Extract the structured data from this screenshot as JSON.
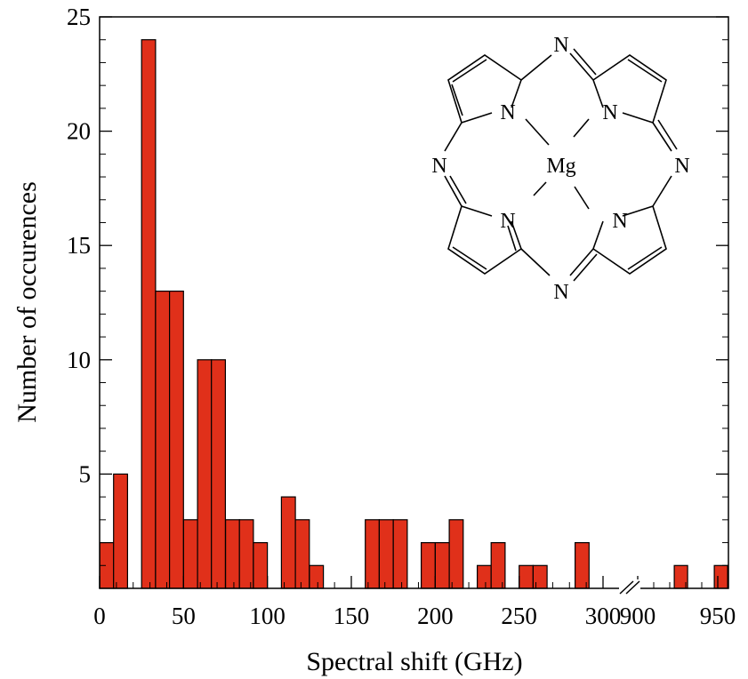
{
  "chart_data": {
    "type": "bar",
    "title": "",
    "xlabel": "Spectral shift  (GHz)",
    "ylabel": "Number of occurences",
    "ylim": [
      0,
      25
    ],
    "yticks": [
      "0",
      "5",
      "10",
      "15",
      "20",
      "25"
    ],
    "xticks": [
      "0",
      "50",
      "100",
      "150",
      "200",
      "250",
      "300",
      "900",
      "950"
    ],
    "axis_break": "between 300 and 900",
    "bar_color": "#e0301a",
    "bin_width": 8.33,
    "bars": [
      {
        "x": 4.2,
        "value": 2
      },
      {
        "x": 12.5,
        "value": 5
      },
      {
        "x": 20.8,
        "value": 0
      },
      {
        "x": 29.2,
        "value": 24
      },
      {
        "x": 37.5,
        "value": 13
      },
      {
        "x": 45.8,
        "value": 13
      },
      {
        "x": 54.2,
        "value": 3
      },
      {
        "x": 62.5,
        "value": 10
      },
      {
        "x": 70.8,
        "value": 10
      },
      {
        "x": 79.2,
        "value": 3
      },
      {
        "x": 87.5,
        "value": 3
      },
      {
        "x": 95.8,
        "value": 2
      },
      {
        "x": 112.5,
        "value": 4
      },
      {
        "x": 120.8,
        "value": 3
      },
      {
        "x": 129.2,
        "value": 1
      },
      {
        "x": 162.5,
        "value": 3
      },
      {
        "x": 170.8,
        "value": 3
      },
      {
        "x": 179.2,
        "value": 3
      },
      {
        "x": 195.8,
        "value": 2
      },
      {
        "x": 204.2,
        "value": 2
      },
      {
        "x": 212.5,
        "value": 3
      },
      {
        "x": 229.2,
        "value": 1
      },
      {
        "x": 237.5,
        "value": 2
      },
      {
        "x": 254.2,
        "value": 1
      },
      {
        "x": 262.5,
        "value": 1
      },
      {
        "x": 287.5,
        "value": 2
      },
      {
        "x": 927,
        "value": 1
      },
      {
        "x": 952,
        "value": 1
      }
    ]
  },
  "inset": {
    "description_labels": {
      "n_top": "N",
      "n_left": "N",
      "n_right": "N",
      "n_bottom": "N",
      "n_inner_tl": "N",
      "n_inner_tr": "N",
      "n_inner_bl": "N",
      "n_inner_br": "N",
      "metal": "Mg"
    }
  }
}
